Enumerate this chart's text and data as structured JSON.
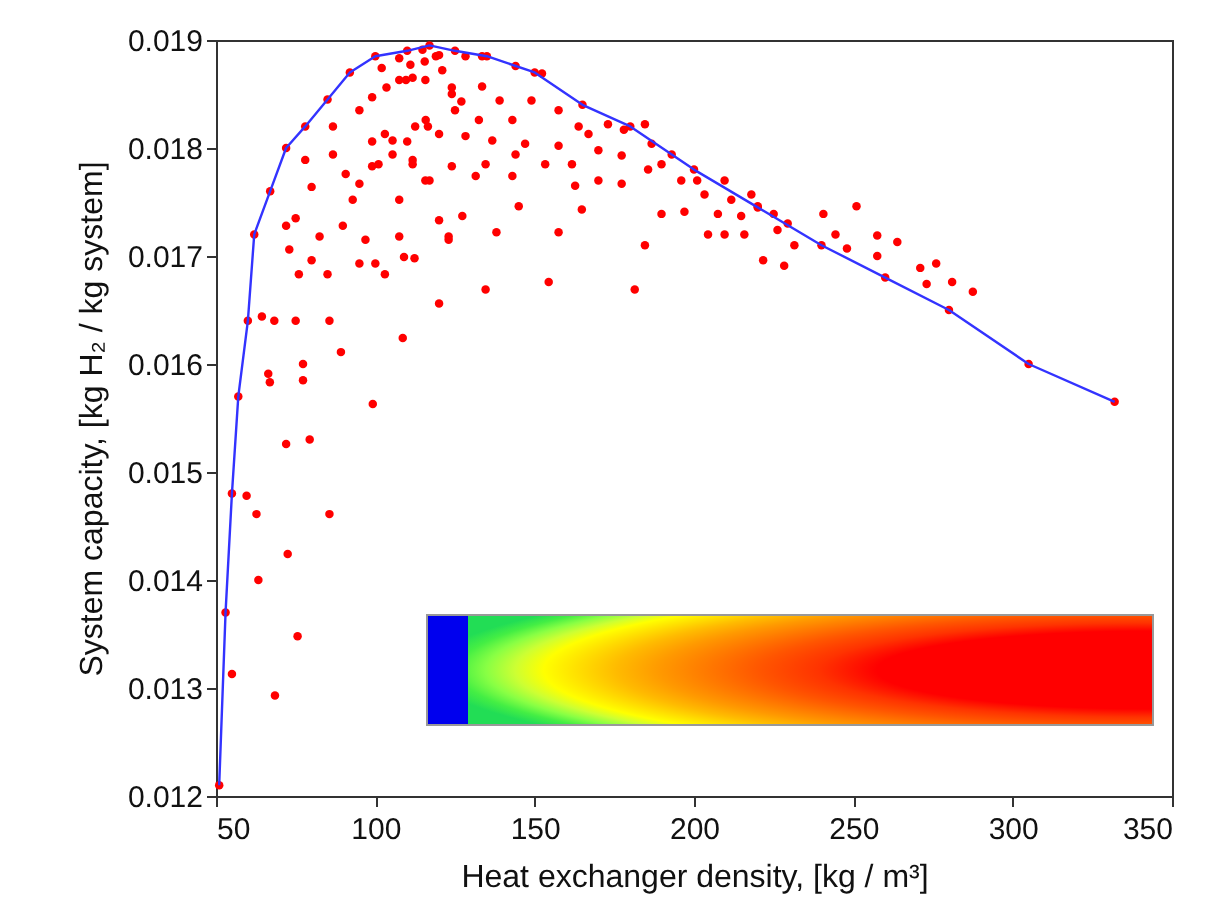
{
  "chart_data": {
    "type": "scatter",
    "xlabel": "Heat exchanger density, [kg / m³]",
    "ylabel": "System capacity, [kg H₂ / kg system]",
    "xlim": [
      50,
      350
    ],
    "xticks": [
      50,
      100,
      150,
      200,
      250,
      300,
      350
    ],
    "ylim": [
      0.012,
      0.019
    ],
    "yticks": [
      0.012,
      0.013,
      0.014,
      0.015,
      0.016,
      0.017,
      0.018,
      0.019
    ],
    "grid": false,
    "series": [
      {
        "color": "#ff0000",
        "marker": "circle",
        "x": [
          51,
          53,
          55,
          57,
          60,
          62,
          67,
          72,
          78,
          85,
          92,
          100,
          110,
          117,
          125,
          135,
          150,
          165,
          180,
          200,
          220,
          240,
          260,
          280,
          305,
          332,
          55,
          59.6,
          62.7,
          63.3,
          66.4,
          66.9,
          68.5,
          64.4,
          68.3,
          72,
          72.5,
          75.6,
          79.4,
          77.3,
          77.3,
          85.6,
          89.2,
          99.2,
          108.6,
          120,
          75,
          85.6,
          72,
          76,
          73,
          80,
          80,
          75,
          82.5,
          85,
          89.8,
          92.9,
          96.9,
          100,
          103,
          109,
          107.5,
          111.7,
          115.7,
          120,
          123,
          78,
          86.7,
          90.7,
          95,
          99,
          99,
          103,
          105.4,
          110,
          112.5,
          116.5,
          86.7,
          95,
          99,
          103.5,
          107.5,
          111.7,
          115.7,
          121,
          124,
          127,
          111,
          115.5,
          120,
          102,
          107.5,
          134.6,
          154.4,
          181.4,
          112.3,
          138,
          157.5,
          184.6,
          221.7,
          228.3,
          231.5,
          95,
          123,
          127.3,
          145,
          164.8,
          189.8,
          197,
          204.4,
          209.6,
          215.8,
          226.2,
          107.5,
          114.8,
          119,
          128.3,
          133.5,
          144,
          152.3,
          109.6,
          124,
          133.5,
          139,
          149,
          157.5,
          163.8,
          173,
          184.6,
          115.8,
          125,
          132.5,
          143,
          105.4,
          120,
          128.3,
          136.7,
          147,
          157.5,
          166.9,
          170,
          177.3,
          178,
          186.7,
          193,
          101,
          111.7,
          124,
          134.6,
          144,
          153.3,
          161.7,
          117,
          131.5,
          143,
          162.7,
          170,
          177.3,
          185.6,
          196,
          201,
          203.3,
          209.6,
          218,
          211.7,
          207.5,
          214.8,
          220,
          225,
          229.4,
          189.8,
          244.4,
          251,
          257.5,
          263.8,
          271,
          276,
          281,
          287.5,
          273,
          257.5,
          248,
          240.6
        ],
        "values": [
          0.0121,
          0.0137,
          0.0148,
          0.0157,
          0.0164,
          0.0172,
          0.0176,
          0.018,
          0.0182,
          0.01845,
          0.0187,
          0.01885,
          0.0189,
          0.01895,
          0.0189,
          0.01885,
          0.0187,
          0.0184,
          0.0182,
          0.0178,
          0.01745,
          0.0171,
          0.0168,
          0.0165,
          0.016,
          0.01565,
          0.01313,
          0.01478,
          0.01461,
          0.014,
          0.01591,
          0.01583,
          0.01293,
          0.01644,
          0.0164,
          0.01526,
          0.01424,
          0.01348,
          0.0153,
          0.016,
          0.01585,
          0.01461,
          0.01611,
          0.01563,
          0.01624,
          0.01656,
          0.0164,
          0.0164,
          0.01728,
          0.01683,
          0.01706,
          0.01696,
          0.01764,
          0.01735,
          0.01718,
          0.01683,
          0.01728,
          0.01752,
          0.01715,
          0.01693,
          0.01683,
          0.01699,
          0.01752,
          0.01785,
          0.0177,
          0.01733,
          0.01718,
          0.01789,
          0.01794,
          0.01776,
          0.01767,
          0.01783,
          0.01806,
          0.01813,
          0.01794,
          0.01806,
          0.0182,
          0.0182,
          0.0182,
          0.01835,
          0.01847,
          0.01856,
          0.01863,
          0.01865,
          0.01863,
          0.01872,
          0.01856,
          0.01843,
          0.01877,
          0.0188,
          0.01886,
          0.01874,
          0.01883,
          0.01669,
          0.01676,
          0.01669,
          0.01698,
          0.01722,
          0.01722,
          0.0171,
          0.01696,
          0.01691,
          0.0171,
          0.01693,
          0.01715,
          0.01737,
          0.01746,
          0.01743,
          0.01739,
          0.01741,
          0.0172,
          0.0172,
          0.0172,
          0.01724,
          0.01718,
          0.01891,
          0.01885,
          0.01885,
          0.01885,
          0.01876,
          0.01869,
          0.01863,
          0.0185,
          0.01857,
          0.01844,
          0.01844,
          0.01835,
          0.0182,
          0.01822,
          0.01822,
          0.01826,
          0.01835,
          0.01826,
          0.01826,
          0.01807,
          0.01813,
          0.01811,
          0.01807,
          0.01804,
          0.01802,
          0.01813,
          0.01798,
          0.01793,
          0.01817,
          0.01804,
          0.01794,
          0.01785,
          0.01789,
          0.01783,
          0.01785,
          0.01794,
          0.01785,
          0.01785,
          0.0177,
          0.01774,
          0.01774,
          0.01765,
          0.0177,
          0.01767,
          0.0178,
          0.0177,
          0.0177,
          0.01757,
          0.0177,
          0.01757,
          0.01752,
          0.01739,
          0.01737,
          0.01746,
          0.01739,
          0.0173,
          0.01785,
          0.0172,
          0.01746,
          0.01719,
          0.01713,
          0.01689,
          0.01693,
          0.01676,
          0.01667,
          0.01674,
          0.017,
          0.01707,
          0.01739
        ]
      },
      {
        "type": "line",
        "color": "#3333ff",
        "marker": "none",
        "line_style": "solid",
        "x": [
          51,
          53,
          55,
          57,
          60,
          62,
          67,
          72,
          78,
          85,
          92,
          100,
          110,
          117,
          125,
          135,
          150,
          165,
          180,
          200,
          220,
          240,
          260,
          280,
          305,
          332
        ],
        "values": [
          0.0121,
          0.0137,
          0.0148,
          0.0157,
          0.0164,
          0.0172,
          0.0176,
          0.018,
          0.0182,
          0.01845,
          0.0187,
          0.01885,
          0.0189,
          0.01895,
          0.0189,
          0.01885,
          0.0187,
          0.0184,
          0.0182,
          0.0178,
          0.01745,
          0.0171,
          0.0168,
          0.0165,
          0.016,
          0.01565
        ]
      }
    ]
  }
}
